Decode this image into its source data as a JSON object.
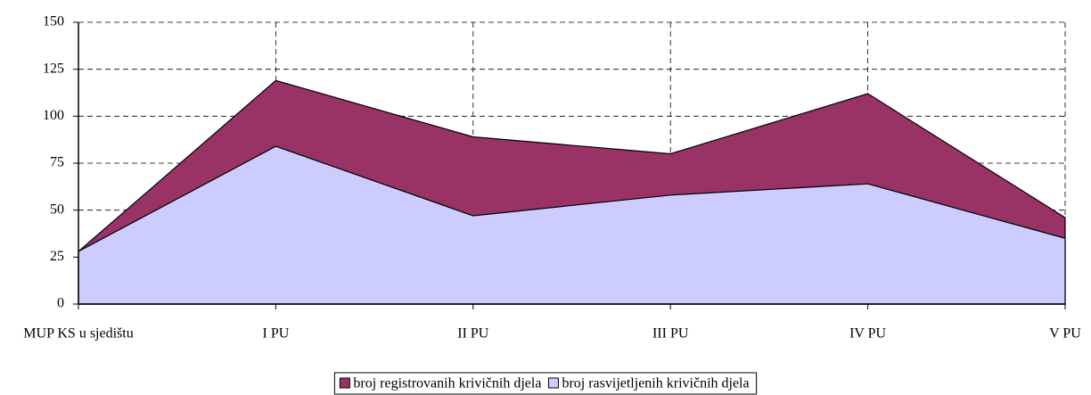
{
  "chart_data": {
    "type": "area",
    "categories": [
      "MUP KS u sjedištu",
      "I PU",
      "II PU",
      "III PU",
      "IV PU",
      "V PU"
    ],
    "series": [
      {
        "name": "broj registrovanih krivičnih djela",
        "color": "#993366",
        "values": [
          28,
          119,
          89,
          80,
          112,
          46
        ]
      },
      {
        "name": "broj rasvijetljenih krivičnih djela",
        "color": "#ccccff",
        "values": [
          28,
          84,
          47,
          58,
          64,
          35
        ]
      }
    ],
    "ylim": [
      0,
      150
    ],
    "yticks": [
      0,
      25,
      50,
      75,
      100,
      125,
      150
    ],
    "grid": true,
    "legend": "bottom"
  }
}
